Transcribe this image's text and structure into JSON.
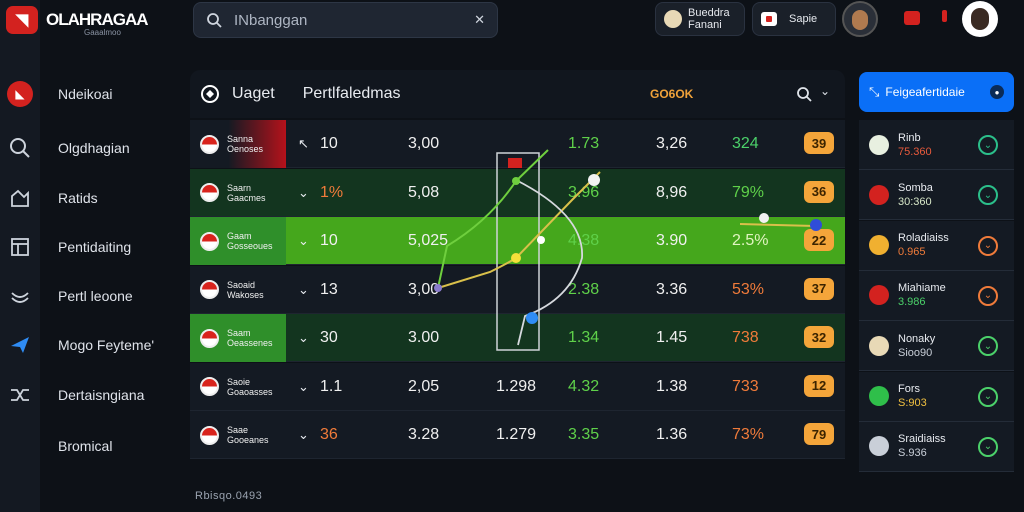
{
  "brand": {
    "title": "OLAHRAGAA",
    "subtitle": "Gaaalmoo"
  },
  "search": {
    "placeholder": "INbanggan"
  },
  "topbar": {
    "user_pill": {
      "line1": "Bueddra",
      "line2": "Fanani"
    },
    "action_pill": "Sapie"
  },
  "nav": [
    {
      "label": "Ndeikoai",
      "icon": "flag-icon"
    },
    {
      "label": "Olgdhagian",
      "icon": "search-icon"
    },
    {
      "label": "Ratids",
      "icon": "chart-icon"
    },
    {
      "label": "Pentidaiting",
      "icon": "layout-icon"
    },
    {
      "label": "Pertl leoone",
      "icon": "wave-icon"
    },
    {
      "label": "Mogo Feyteme'",
      "icon": "send-icon"
    },
    {
      "label": "Dertaisngiana",
      "icon": "shuffle-icon"
    },
    {
      "label": "Bromical",
      "icon": "none"
    }
  ],
  "table": {
    "header": {
      "title": "Uaget",
      "tab": "Pertlfaledmas",
      "accent": "GO6OK"
    },
    "rows": [
      {
        "team1": "Sanna",
        "team2": "Oenoses",
        "chev": "↖",
        "c1": "10",
        "c2": "3,00",
        "c3": "",
        "c4": "1.73",
        "c5": "3,26",
        "c6": "324",
        "badge": "39"
      },
      {
        "team1": "Saarn",
        "team2": "Gaacmes",
        "chev": "⌄",
        "c1": "1%",
        "c2": "5,08",
        "c3": "",
        "c4": "3.96",
        "c5": "8,96",
        "c6": "79%",
        "badge": "36"
      },
      {
        "team1": "Gaam",
        "team2": "Gosseoues",
        "chev": "⌄",
        "c1": "10",
        "c2": "5,025",
        "c3": "",
        "c4": "4.38",
        "c5": "3.90",
        "c6": "2.5%",
        "badge": "22"
      },
      {
        "team1": "Saoaid",
        "team2": "Wakoses",
        "chev": "⌄",
        "c1": "13",
        "c2": "3,00",
        "c3": "",
        "c4": "2.38",
        "c5": "3.36",
        "c6": "53%",
        "badge": "37"
      },
      {
        "team1": "Saam",
        "team2": "Oeassenes",
        "chev": "⌄",
        "c1": "30",
        "c2": "3.00",
        "c3": "",
        "c4": "1.34",
        "c5": "1.45",
        "c6": "738",
        "badge": "32"
      },
      {
        "team1": "Saoie",
        "team2": "Goaoasses",
        "chev": "⌄",
        "c1": "1.1",
        "c2": "2,05",
        "c3": "1.298",
        "c4": "4.32",
        "c5": "1.38",
        "c6": "733",
        "badge": "12"
      },
      {
        "team1": "Saae",
        "team2": "Gooeanes",
        "chev": "⌄",
        "c1": "36",
        "c2": "3.28",
        "c3": "1.279",
        "c4": "3.35",
        "c5": "1.36",
        "c6": "73%",
        "badge": "79"
      }
    ]
  },
  "side": {
    "cta": "Feigeafertidaie",
    "items": [
      {
        "name": "Rinb",
        "value": "75.360",
        "vcolor": "#e85a3c",
        "acolor": "#2bbf8a",
        "icon": "leaf-icon"
      },
      {
        "name": "Somba",
        "value": "30:360",
        "vcolor": "#d7e7c8",
        "acolor": "#2bbf8a",
        "icon": "flag-icon"
      },
      {
        "name": "Roladiaiss",
        "value": "0.965",
        "vcolor": "#f07b3a",
        "acolor": "#f07b3a",
        "icon": "shield-icon"
      },
      {
        "name": "Miahiame",
        "value": "3.986",
        "vcolor": "#4bd16a",
        "acolor": "#f07b3a",
        "icon": "flag-icon"
      },
      {
        "name": "Nonaky",
        "value": "Sioo90",
        "vcolor": "#c9cfd8",
        "acolor": "#4bd16a",
        "icon": "skull-icon"
      },
      {
        "name": "Fors",
        "value": "S:903",
        "vcolor": "#f0c040",
        "acolor": "#4bd16a",
        "icon": "circle-icon"
      },
      {
        "name": "Sraidiaiss",
        "value": "S.936",
        "vcolor": "#c9cfd8",
        "acolor": "#4bd16a",
        "icon": "shield-icon"
      }
    ]
  },
  "footer": "Rbisqo.0493",
  "colors": {
    "accent": "#d3221f",
    "green": "#45a71c",
    "blue": "#0a6ff7",
    "orange": "#f4a53a"
  }
}
